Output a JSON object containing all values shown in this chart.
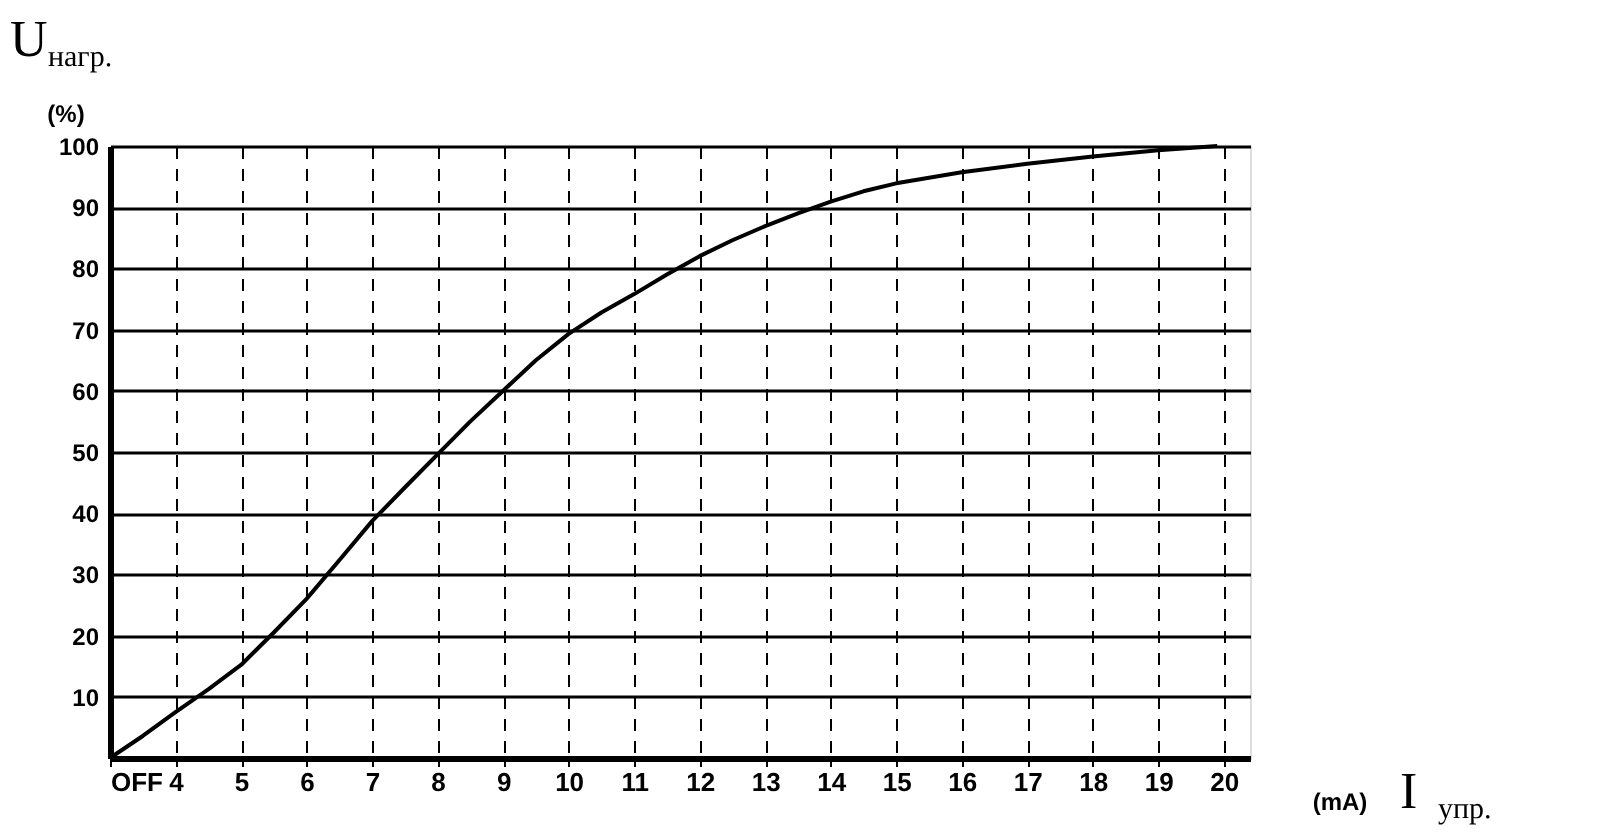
{
  "chart_data": {
    "type": "line",
    "ylabel": "U$_{нагр.}$",
    "xlabel": "I$_{упр.}$",
    "annotations": [
      "(%)",
      "(mA)"
    ],
    "x": [
      3,
      3.5,
      4,
      4.5,
      5,
      5.5,
      6,
      6.5,
      7,
      7.5,
      8,
      8.5,
      9,
      9.5,
      10,
      10.5,
      11,
      11.5,
      12,
      12.5,
      13,
      13.5,
      14,
      14.5,
      15,
      16,
      17,
      18,
      19,
      19.9
    ],
    "series": [
      {
        "color": "#000000",
        "values": [
          0,
          3.6,
          7.5,
          11.2,
          15.2,
          20.5,
          26,
          32.3,
          38.7,
          44.2,
          49.6,
          55,
          60,
          65,
          69.3,
          72.8,
          75.8,
          79,
          82,
          84.6,
          86.9,
          89,
          90.9,
          92.6,
          93.9,
          95.7,
          97.1,
          98.3,
          99.3,
          100
        ]
      }
    ],
    "xlim": [
      3,
      20.4
    ],
    "ylim": [
      0,
      100
    ],
    "xticks": [
      {
        "value": 3,
        "label": "OFF"
      },
      4,
      5,
      6,
      7,
      8,
      9,
      10,
      11,
      12,
      13,
      14,
      15,
      16,
      17,
      18,
      19,
      20
    ],
    "yticks": [
      10,
      20,
      30,
      40,
      50,
      60,
      70,
      80,
      90,
      100
    ],
    "grid": true,
    "marker": "none",
    "line_style": "solid"
  }
}
